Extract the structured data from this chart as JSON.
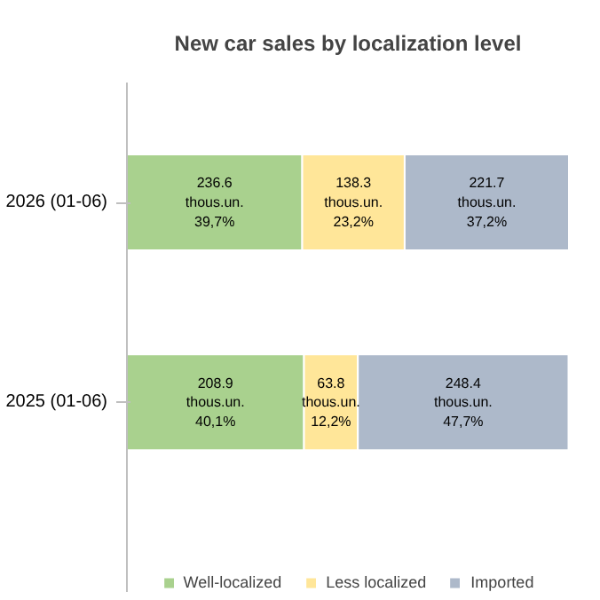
{
  "chart_data": {
    "type": "bar",
    "title": "New car sales by localization level",
    "categories": [
      "2026 (01-06)",
      "2025 (01-06)"
    ],
    "orientation": "horizontal",
    "stacked": true,
    "legend": "bottom",
    "tick_labels": "y",
    "series": [
      {
        "name": "Well-localized",
        "color": "#a9d18e",
        "values": [
          39.7,
          40.1
        ],
        "value_labels": [
          "236.6\nthous.un.\n39,7%",
          "208.9\nthous.un.\n40,1%"
        ]
      },
      {
        "name": "Less localized",
        "color": "#ffe699",
        "values": [
          23.2,
          12.2
        ],
        "value_labels": [
          "138.3\nthous.un.\n23,2%",
          "63.8\nthous.un.\n12,2%"
        ]
      },
      {
        "name": "Imported",
        "color": "#adb9ca",
        "values": [
          37.2,
          47.7
        ],
        "value_labels": [
          "221.7\nthous.un.\n37,2%",
          "248.4\nthous.un.\n47,7%"
        ]
      }
    ]
  }
}
